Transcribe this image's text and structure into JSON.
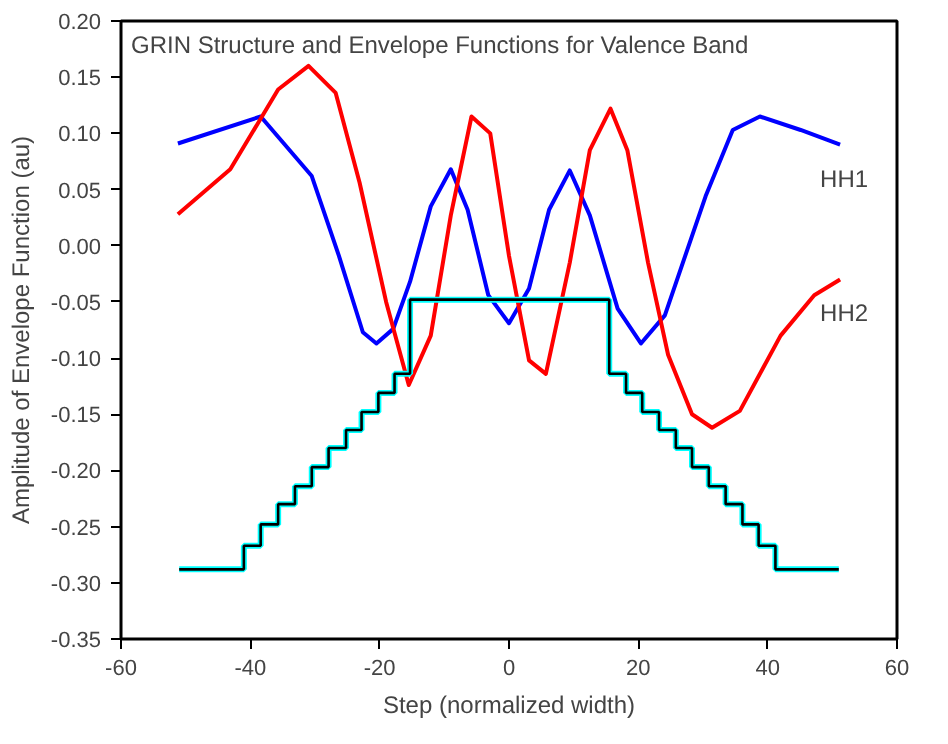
{
  "chart_data": {
    "type": "line",
    "title": "GRIN Structure and Envelope Functions for Valence Band",
    "xlabel": "Step (normalized width)",
    "ylabel": "Amplitude of Envelope Function (au)",
    "xlim": [
      -60,
      60
    ],
    "xticks": [
      -60,
      -40,
      -20,
      0,
      20,
      40,
      60
    ],
    "ylim": [
      -0.35,
      0.2
    ],
    "yticks": [
      {
        "value": -0.35,
        "label": "-0.35"
      },
      {
        "value": -0.3,
        "label": "-0.30"
      },
      {
        "value": -0.25,
        "label": "-0.25"
      },
      {
        "value": -0.2,
        "label": "-0.20"
      },
      {
        "value": -0.15,
        "label": "-0.15"
      },
      {
        "value": -0.1,
        "label": "-0.10"
      },
      {
        "value": -0.05,
        "label": "-0.05"
      },
      {
        "value": 0,
        "label": "0.00"
      },
      {
        "value": 0.05,
        "label": "0.05"
      },
      {
        "value": 0.1,
        "label": "0.10"
      },
      {
        "value": 0.15,
        "label": "0.15"
      },
      {
        "value": 0.2,
        "label": "0.20"
      }
    ],
    "grid": false,
    "legend": false,
    "marker": "none",
    "line_style": "solid",
    "series": [
      {
        "name": "HH1",
        "color": "#0000ff",
        "x": [
          -51.2,
          -38.4,
          -30.5,
          -26.3,
          -22.6,
          -20.5,
          -17.9,
          -15.3,
          -12.1,
          -9.0,
          -6.4,
          -3.2,
          0,
          3.1,
          6.2,
          9.4,
          12.5,
          16.8,
          20.4,
          24.1,
          30.4,
          34.6,
          38.8,
          45.1,
          51.2
        ],
        "values": [
          0.091,
          0.115,
          0.062,
          -0.009,
          -0.077,
          -0.087,
          -0.074,
          -0.032,
          0.035,
          0.068,
          0.032,
          -0.044,
          -0.069,
          -0.038,
          0.032,
          0.067,
          0.027,
          -0.056,
          -0.087,
          -0.062,
          0.044,
          0.103,
          0.115,
          0.103,
          0.09
        ]
      },
      {
        "name": "HH2",
        "color": "#ff0000",
        "x": [
          -51.2,
          -43.1,
          -35.7,
          -31,
          -26.8,
          -23.1,
          -19,
          -15.5,
          -12.1,
          -9.0,
          -5.8,
          -2.9,
          0,
          3.1,
          5.7,
          9.4,
          12.5,
          15.7,
          18.3,
          21.5,
          24.6,
          28.3,
          31.4,
          35.7,
          42,
          47.2,
          51.2
        ],
        "values": [
          0.028,
          0.068,
          0.139,
          0.16,
          0.136,
          0.056,
          -0.05,
          -0.124,
          -0.08,
          0.027,
          0.115,
          0.1,
          -0.009,
          -0.102,
          -0.114,
          -0.015,
          0.085,
          0.122,
          0.085,
          -0.015,
          -0.097,
          -0.15,
          -0.162,
          -0.147,
          -0.08,
          -0.044,
          -0.03
        ]
      },
      {
        "type": "step",
        "color": "#00ffff",
        "x": [
          -51,
          -41,
          -38.4,
          -35.7,
          -33.1,
          -30.5,
          -27.9,
          -25.2,
          -22.8,
          -20.2,
          -17.7,
          -15.3,
          15.5,
          18.1,
          20.6,
          23.2,
          25.8,
          28.3,
          30.9,
          33.5,
          36.1,
          38.6,
          41.2,
          51
        ],
        "values": [
          -0.288,
          -0.267,
          -0.248,
          -0.23,
          -0.214,
          -0.197,
          -0.18,
          -0.164,
          -0.148,
          -0.131,
          -0.114,
          -0.048,
          -0.114,
          -0.131,
          -0.148,
          -0.164,
          -0.18,
          -0.197,
          -0.214,
          -0.23,
          -0.248,
          -0.267,
          -0.288,
          -0.288
        ]
      },
      {
        "type": "step",
        "color": "#000000",
        "x": [
          -51,
          -41,
          -38.4,
          -35.7,
          -33.1,
          -30.5,
          -27.9,
          -25.2,
          -22.8,
          -20.2,
          -17.7,
          -15.3,
          15.5,
          18.1,
          20.6,
          23.2,
          25.8,
          28.3,
          30.9,
          33.5,
          36.1,
          38.6,
          41.2,
          51
        ],
        "values": [
          -0.288,
          -0.267,
          -0.248,
          -0.23,
          -0.214,
          -0.197,
          -0.18,
          -0.164,
          -0.148,
          -0.131,
          -0.114,
          -0.048,
          -0.114,
          -0.131,
          -0.148,
          -0.164,
          -0.18,
          -0.197,
          -0.214,
          -0.23,
          -0.248,
          -0.267,
          -0.288,
          -0.288
        ]
      }
    ]
  }
}
